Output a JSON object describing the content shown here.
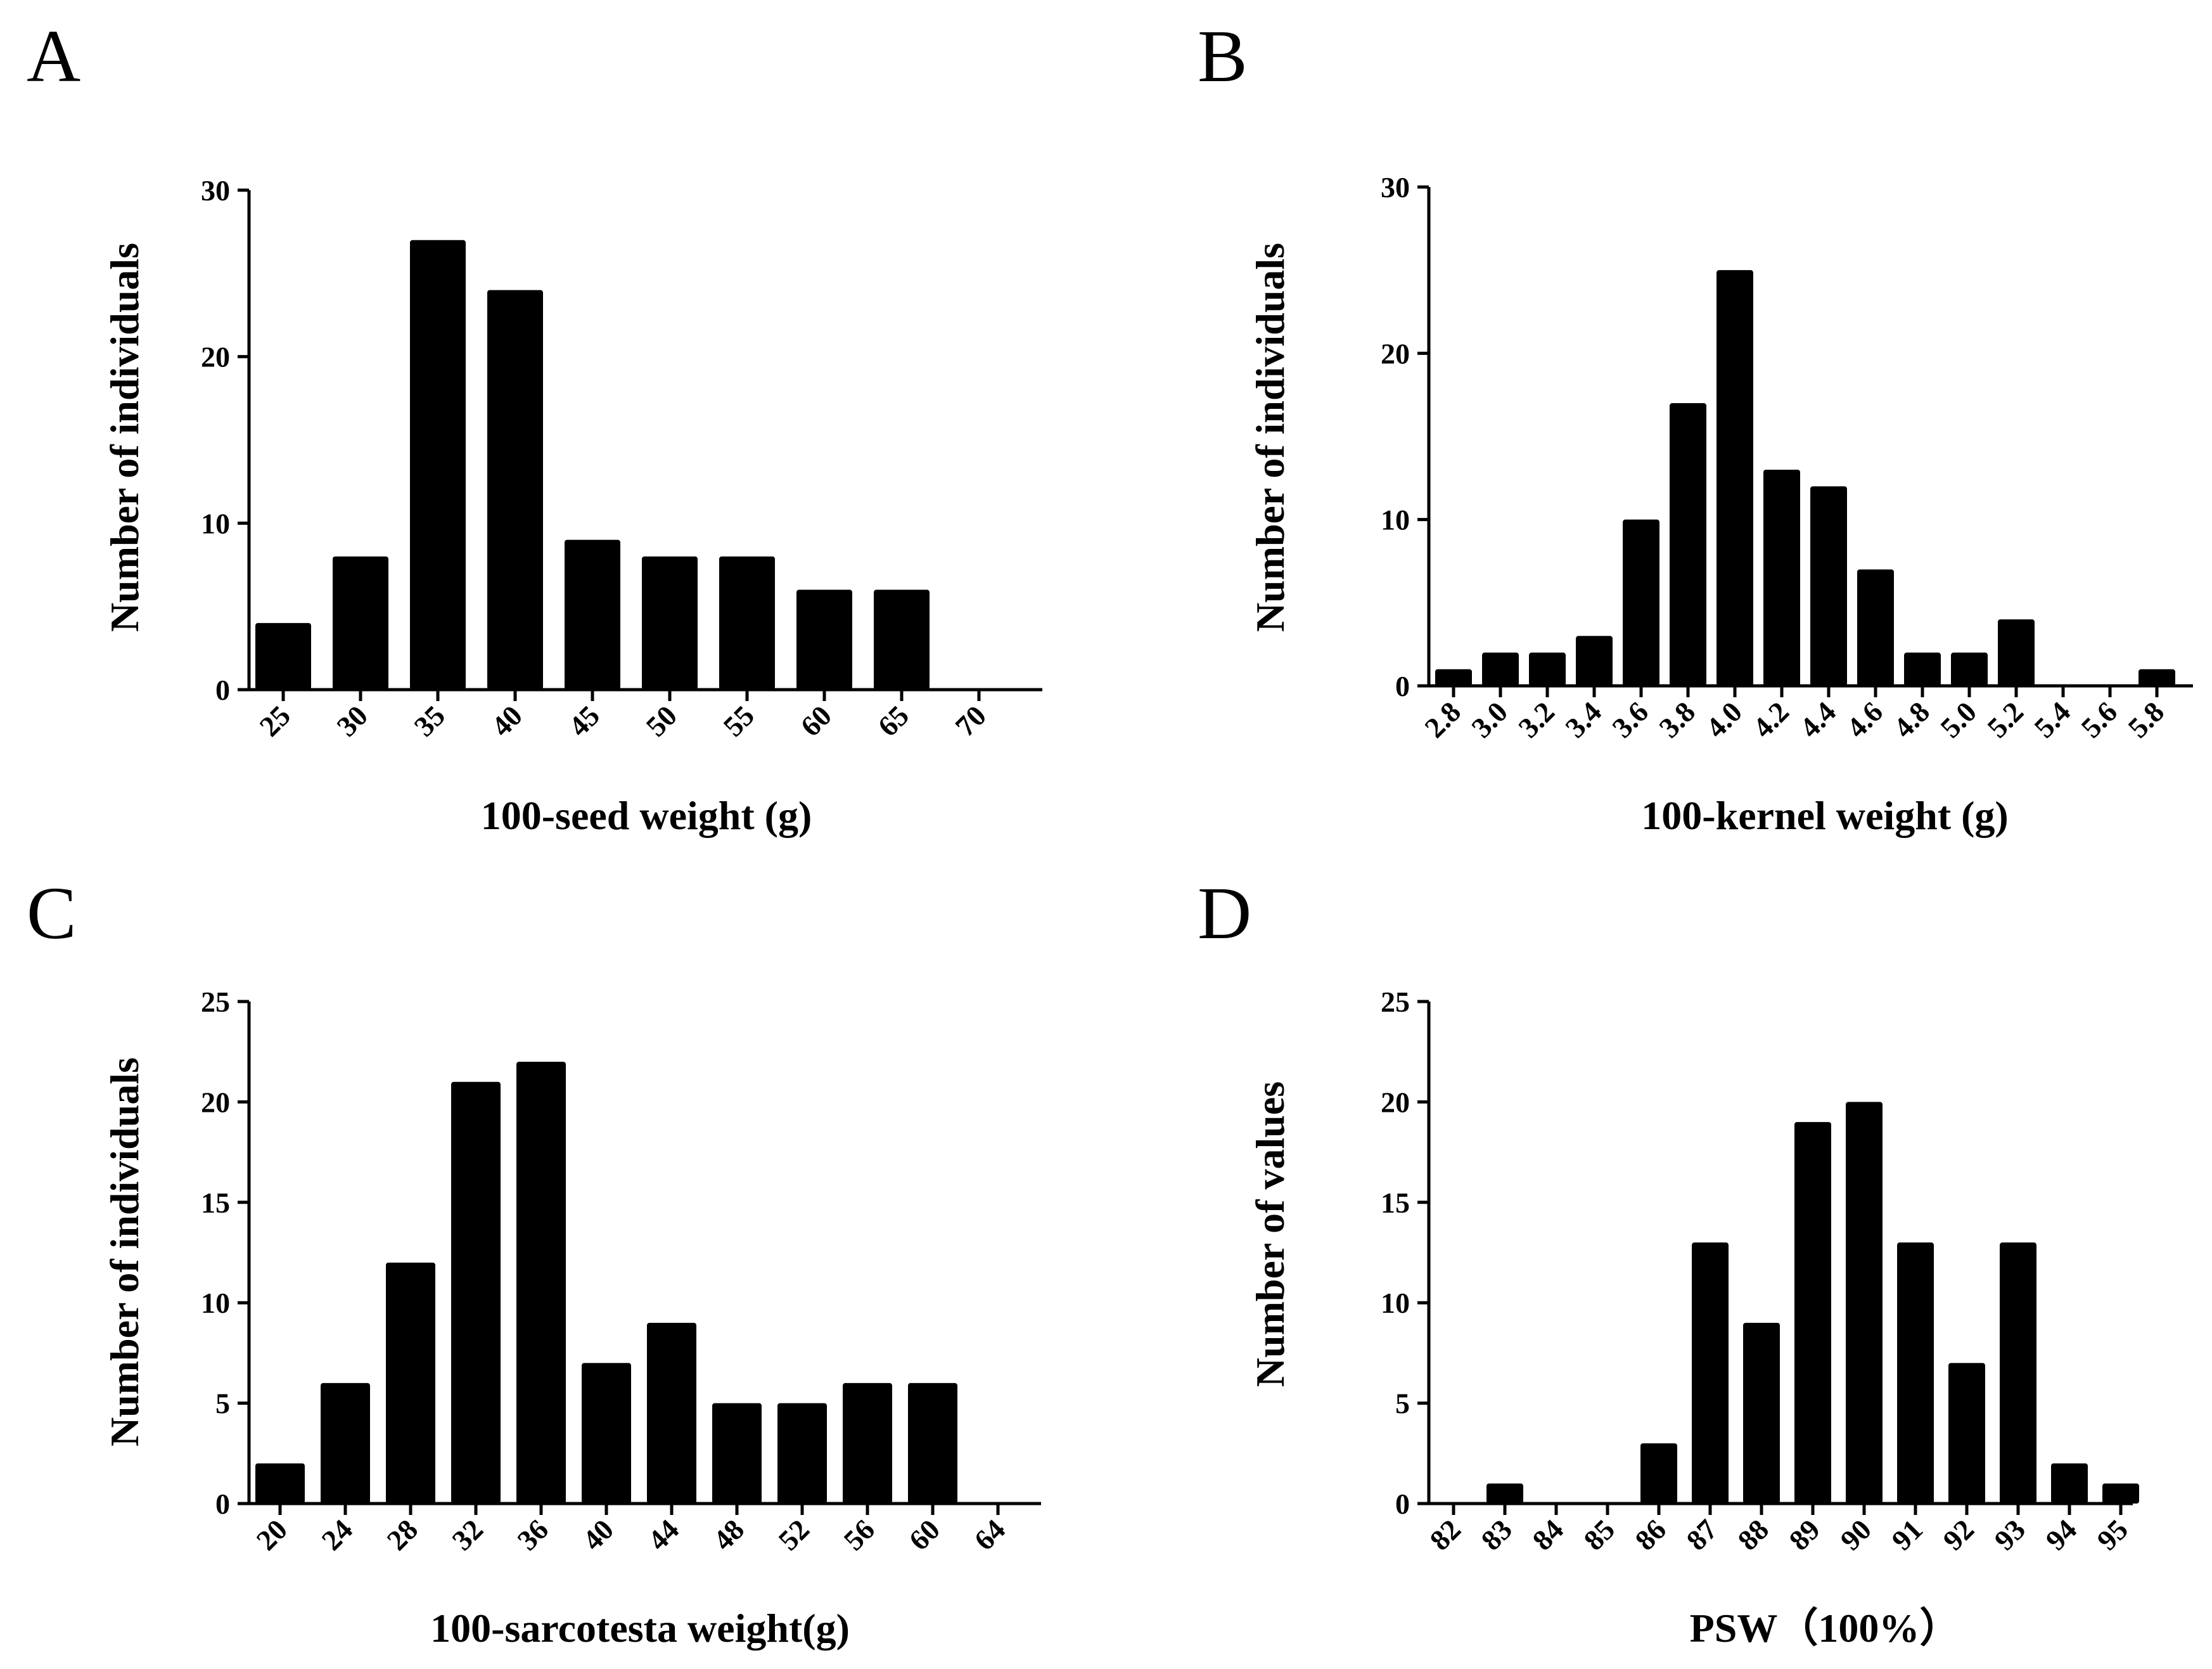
{
  "chart_data": [
    {
      "type": "bar",
      "panel": "A",
      "title": "",
      "xlabel": "100-seed weight (g)",
      "ylabel": "Number of individuals",
      "categories": [
        "25",
        "30",
        "35",
        "40",
        "45",
        "50",
        "55",
        "60",
        "65",
        "70"
      ],
      "values": [
        4,
        8,
        27,
        24,
        9,
        8,
        8,
        6,
        6,
        0
      ],
      "ylim": [
        0,
        30
      ],
      "yticks": [
        "0",
        "10",
        "20",
        "30"
      ],
      "grid": false
    },
    {
      "type": "bar",
      "panel": "B",
      "title": "",
      "xlabel": "100-kernel weight (g)",
      "ylabel": "Number of individuals",
      "categories": [
        "2.8",
        "3.0",
        "3.2",
        "3.4",
        "3.6",
        "3.8",
        "4.0",
        "4.2",
        "4.4",
        "4.6",
        "4.8",
        "5.0",
        "5.2",
        "5.4",
        "5.6",
        "5.8"
      ],
      "values": [
        1,
        2,
        2,
        3,
        10,
        17,
        25,
        13,
        12,
        7,
        2,
        2,
        4,
        0,
        0,
        1
      ],
      "ylim": [
        0,
        30
      ],
      "yticks": [
        "0",
        "10",
        "20",
        "30"
      ],
      "grid": false
    },
    {
      "type": "bar",
      "panel": "C",
      "title": "",
      "xlabel": "100-sarcotesta weight(g)",
      "ylabel": "Number of individuals",
      "categories": [
        "20",
        "24",
        "28",
        "32",
        "36",
        "40",
        "44",
        "48",
        "52",
        "56",
        "60",
        "64"
      ],
      "values": [
        2,
        6,
        12,
        21,
        22,
        7,
        9,
        5,
        5,
        6,
        6,
        0
      ],
      "ylim": [
        0,
        25
      ],
      "yticks": [
        "0",
        "5",
        "10",
        "15",
        "20",
        "25"
      ],
      "grid": false
    },
    {
      "type": "bar",
      "panel": "D",
      "title": "",
      "xlabel": "PSW（100%）",
      "ylabel": "Number of values",
      "categories": [
        "82",
        "83",
        "84",
        "85",
        "86",
        "87",
        "88",
        "89",
        "90",
        "91",
        "92",
        "93",
        "94",
        "95"
      ],
      "values": [
        0,
        1,
        0,
        0,
        3,
        13,
        9,
        19,
        20,
        13,
        7,
        13,
        2,
        1
      ],
      "ylim": [
        0,
        25
      ],
      "yticks": [
        "0",
        "5",
        "10",
        "15",
        "20",
        "25"
      ],
      "grid": false
    }
  ]
}
